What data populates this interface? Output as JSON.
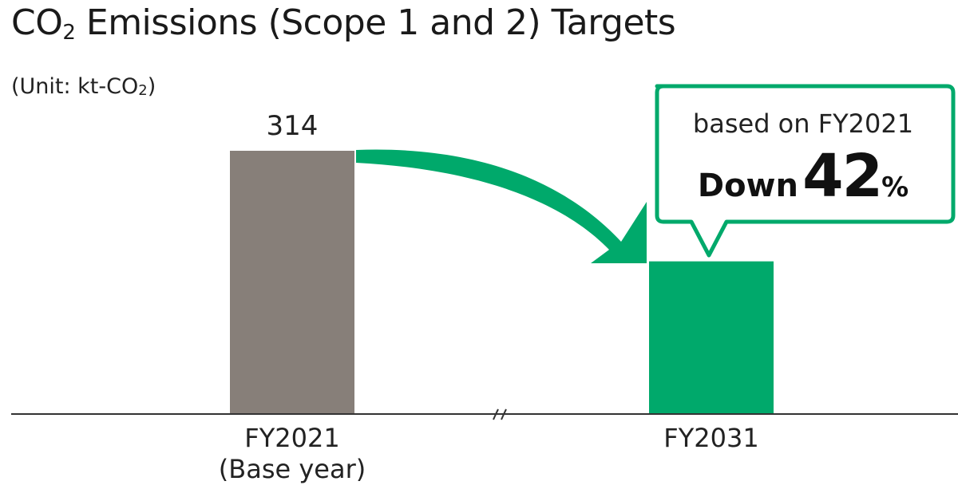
{
  "title": {
    "prefix": "CO",
    "subscript": "2",
    "suffix": " Emissions (Scope 1 and 2) Targets"
  },
  "unit": {
    "prefix": "(Unit: kt-CO",
    "subscript": "2",
    "suffix": ")"
  },
  "callout": {
    "line1": "based on FY2021",
    "word": "Down",
    "value": "42",
    "unit": "%"
  },
  "colors": {
    "base_bar": "#877f79",
    "target_bar": "#00a96b",
    "axis": "#333333"
  },
  "chart_data": {
    "type": "bar",
    "categories": [
      "FY2021\n(Base year)",
      "FY2031"
    ],
    "values": [
      314,
      182.1
    ],
    "data_labels": [
      "314",
      ""
    ],
    "xlabel": "",
    "ylabel": "",
    "grid": false,
    "axis_break": true,
    "annotation": "based on FY2021 Down 42%"
  }
}
